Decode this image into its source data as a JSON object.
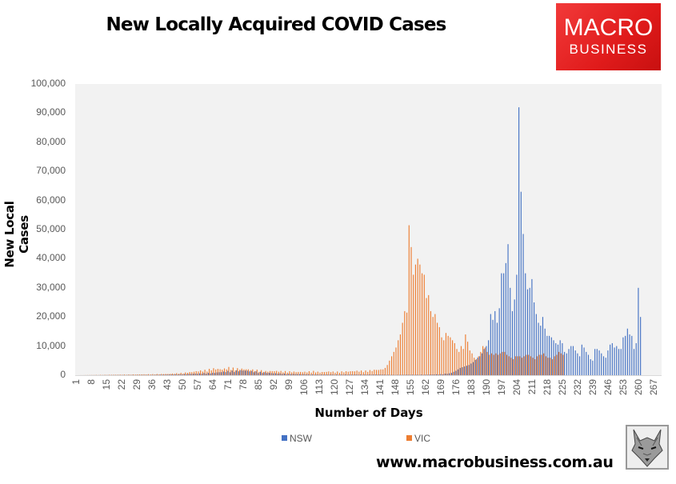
{
  "header": {
    "title": "New Locally Acquired COVID Cases",
    "logo_line1": "MACRO",
    "logo_line2": "BUSINESS"
  },
  "footer": {
    "url": "www.macrobusiness.com.au",
    "mascot_icon": "wolf-icon"
  },
  "colors": {
    "NSW": "#4472c4",
    "VIC": "#ed7d31",
    "plot_bg": "#f2f2f2"
  },
  "chart_data": {
    "type": "bar",
    "title": "New Locally Acquired COVID Cases",
    "xlabel": "Number of Days",
    "ylabel": "New Local Cases",
    "ylim": [
      0,
      100000
    ],
    "yticks": [
      "0",
      "10,000",
      "20,000",
      "30,000",
      "40,000",
      "50,000",
      "60,000",
      "70,000",
      "80,000",
      "90,000",
      "100,000"
    ],
    "xticks": [
      "1",
      "8",
      "15",
      "22",
      "29",
      "36",
      "43",
      "50",
      "57",
      "64",
      "71",
      "78",
      "85",
      "92",
      "99",
      "106",
      "113",
      "120",
      "127",
      "134",
      "141",
      "148",
      "155",
      "162",
      "169",
      "176",
      "183",
      "190",
      "197",
      "204",
      "211",
      "218",
      "225",
      "232",
      "239",
      "246",
      "253",
      "260",
      "267"
    ],
    "x_range": [
      1,
      270
    ],
    "grid": false,
    "legend_position": "bottom",
    "series": [
      {
        "name": "NSW",
        "color": "#4472c4",
        "points": [
          [
            1,
            0
          ],
          [
            36,
            100
          ],
          [
            50,
            300
          ],
          [
            57,
            500
          ],
          [
            64,
            700
          ],
          [
            71,
            1200
          ],
          [
            78,
            1500
          ],
          [
            85,
            1000
          ],
          [
            92,
            600
          ],
          [
            99,
            400
          ],
          [
            106,
            300
          ],
          [
            113,
            200
          ],
          [
            120,
            200
          ],
          [
            127,
            200
          ],
          [
            134,
            200
          ],
          [
            141,
            200
          ],
          [
            148,
            100
          ],
          [
            155,
            150
          ],
          [
            162,
            150
          ],
          [
            169,
            300
          ],
          [
            172,
            500
          ],
          [
            174,
            800
          ],
          [
            176,
            1500
          ],
          [
            178,
            2500
          ],
          [
            180,
            3000
          ],
          [
            182,
            3500
          ],
          [
            184,
            4500
          ],
          [
            186,
            6000
          ],
          [
            187,
            6500
          ],
          [
            188,
            7500
          ],
          [
            189,
            9000
          ],
          [
            190,
            10000
          ],
          [
            191,
            12000
          ],
          [
            192,
            21000
          ],
          [
            193,
            19000
          ],
          [
            194,
            22000
          ],
          [
            195,
            18000
          ],
          [
            196,
            23000
          ],
          [
            197,
            35000
          ],
          [
            198,
            35000
          ],
          [
            199,
            38500
          ],
          [
            200,
            45000
          ],
          [
            201,
            30000
          ],
          [
            202,
            22000
          ],
          [
            203,
            26000
          ],
          [
            204,
            34500
          ],
          [
            205,
            92000
          ],
          [
            206,
            63000
          ],
          [
            207,
            48500
          ],
          [
            208,
            35000
          ],
          [
            209,
            29500
          ],
          [
            210,
            30000
          ],
          [
            211,
            33000
          ],
          [
            212,
            25000
          ],
          [
            213,
            21000
          ],
          [
            214,
            18000
          ],
          [
            215,
            17000
          ],
          [
            216,
            20000
          ],
          [
            217,
            16000
          ],
          [
            218,
            13500
          ],
          [
            219,
            13500
          ],
          [
            220,
            13000
          ],
          [
            221,
            12000
          ],
          [
            222,
            11000
          ],
          [
            223,
            10500
          ],
          [
            224,
            12000
          ],
          [
            225,
            11000
          ],
          [
            226,
            8000
          ],
          [
            227,
            7500
          ],
          [
            228,
            9000
          ],
          [
            229,
            10000
          ],
          [
            230,
            10000
          ],
          [
            231,
            8500
          ],
          [
            232,
            7500
          ],
          [
            233,
            6500
          ],
          [
            234,
            10500
          ],
          [
            235,
            9500
          ],
          [
            236,
            8000
          ],
          [
            237,
            7000
          ],
          [
            238,
            5500
          ],
          [
            239,
            5000
          ],
          [
            240,
            9000
          ],
          [
            241,
            9000
          ],
          [
            242,
            8500
          ],
          [
            243,
            7500
          ],
          [
            244,
            6500
          ],
          [
            245,
            6000
          ],
          [
            246,
            8500
          ],
          [
            247,
            10500
          ],
          [
            248,
            11000
          ],
          [
            249,
            9500
          ],
          [
            250,
            10000
          ],
          [
            251,
            9000
          ],
          [
            252,
            9000
          ],
          [
            253,
            13000
          ],
          [
            254,
            13500
          ],
          [
            255,
            16000
          ],
          [
            256,
            14000
          ],
          [
            257,
            13500
          ],
          [
            258,
            9000
          ],
          [
            259,
            11000
          ],
          [
            260,
            30000
          ],
          [
            261,
            20000
          ]
        ]
      },
      {
        "name": "VIC",
        "color": "#ed7d31",
        "points": [
          [
            1,
            0
          ],
          [
            36,
            300
          ],
          [
            43,
            400
          ],
          [
            50,
            700
          ],
          [
            54,
            1000
          ],
          [
            57,
            1300
          ],
          [
            60,
            1500
          ],
          [
            64,
            2000
          ],
          [
            68,
            1800
          ],
          [
            71,
            2300
          ],
          [
            74,
            2000
          ],
          [
            78,
            1900
          ],
          [
            81,
            1700
          ],
          [
            85,
            1500
          ],
          [
            88,
            1200
          ],
          [
            92,
            1300
          ],
          [
            95,
            1200
          ],
          [
            99,
            1100
          ],
          [
            103,
            1000
          ],
          [
            106,
            1000
          ],
          [
            110,
            1200
          ],
          [
            113,
            900
          ],
          [
            117,
            1100
          ],
          [
            120,
            1000
          ],
          [
            124,
            1100
          ],
          [
            127,
            1200
          ],
          [
            130,
            1300
          ],
          [
            134,
            1300
          ],
          [
            137,
            1500
          ],
          [
            140,
            1800
          ],
          [
            141,
            2000
          ],
          [
            142,
            2000
          ],
          [
            143,
            2500
          ],
          [
            144,
            3500
          ],
          [
            145,
            5000
          ],
          [
            146,
            6500
          ],
          [
            147,
            8000
          ],
          [
            148,
            9500
          ],
          [
            149,
            12000
          ],
          [
            150,
            14000
          ],
          [
            151,
            18000
          ],
          [
            152,
            22000
          ],
          [
            153,
            21500
          ],
          [
            154,
            51500
          ],
          [
            155,
            44000
          ],
          [
            156,
            34500
          ],
          [
            157,
            38000
          ],
          [
            158,
            40000
          ],
          [
            159,
            38000
          ],
          [
            160,
            35000
          ],
          [
            161,
            34500
          ],
          [
            162,
            26500
          ],
          [
            163,
            27500
          ],
          [
            164,
            22000
          ],
          [
            165,
            20000
          ],
          [
            166,
            21000
          ],
          [
            167,
            18000
          ],
          [
            168,
            16500
          ],
          [
            169,
            13000
          ],
          [
            170,
            12000
          ],
          [
            171,
            14500
          ],
          [
            172,
            13500
          ],
          [
            173,
            13000
          ],
          [
            174,
            12000
          ],
          [
            175,
            11000
          ],
          [
            176,
            9000
          ],
          [
            177,
            8000
          ],
          [
            178,
            10000
          ],
          [
            179,
            9000
          ],
          [
            180,
            14000
          ],
          [
            181,
            11500
          ],
          [
            182,
            8500
          ],
          [
            183,
            7500
          ],
          [
            184,
            6000
          ],
          [
            185,
            5500
          ],
          [
            186,
            6500
          ],
          [
            187,
            8000
          ],
          [
            188,
            10000
          ],
          [
            189,
            9500
          ],
          [
            190,
            8000
          ],
          [
            191,
            7000
          ],
          [
            192,
            7500
          ],
          [
            193,
            7000
          ],
          [
            194,
            7500
          ],
          [
            195,
            7000
          ],
          [
            196,
            7500
          ],
          [
            197,
            8000
          ],
          [
            198,
            8000
          ],
          [
            199,
            7000
          ],
          [
            200,
            6500
          ],
          [
            201,
            6000
          ],
          [
            202,
            5500
          ],
          [
            203,
            6500
          ],
          [
            204,
            6500
          ],
          [
            205,
            6500
          ],
          [
            206,
            6000
          ],
          [
            207,
            6500
          ],
          [
            208,
            7000
          ],
          [
            209,
            7000
          ],
          [
            210,
            6500
          ],
          [
            211,
            6000
          ],
          [
            212,
            5500
          ],
          [
            213,
            6500
          ],
          [
            214,
            7000
          ],
          [
            215,
            7000
          ],
          [
            216,
            7500
          ],
          [
            217,
            6500
          ],
          [
            218,
            6000
          ],
          [
            219,
            6000
          ],
          [
            220,
            5500
          ],
          [
            221,
            6500
          ],
          [
            222,
            7000
          ],
          [
            223,
            8000
          ],
          [
            224,
            7500
          ],
          [
            225,
            7000
          ]
        ]
      }
    ]
  }
}
